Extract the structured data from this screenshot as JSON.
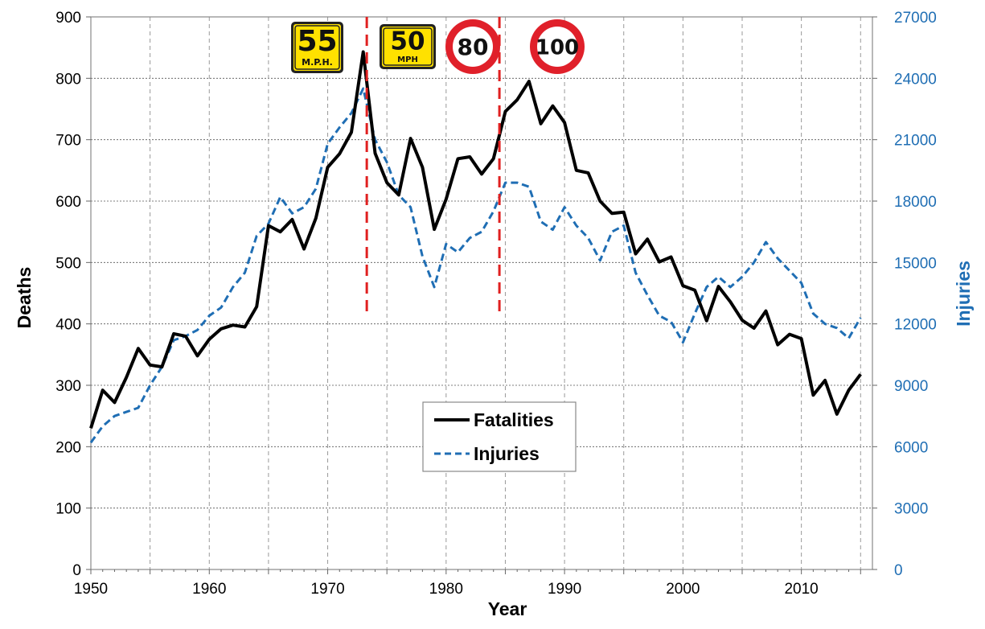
{
  "chart_data": {
    "type": "line",
    "xlabel": "Year",
    "ylabel": "Deaths",
    "y2label": "Injuries",
    "xlim": [
      1950,
      2016
    ],
    "ylim": [
      0,
      900
    ],
    "y2lim": [
      0,
      27000
    ],
    "x_ticks": [
      "1950",
      "1960",
      "1970",
      "1980",
      "1990",
      "2000",
      "2010"
    ],
    "y_ticks": [
      "0",
      "100",
      "200",
      "300",
      "400",
      "500",
      "600",
      "700",
      "800",
      "900"
    ],
    "y2_ticks": [
      "0",
      "3000",
      "6000",
      "9000",
      "12000",
      "15000",
      "18000",
      "21000",
      "24000",
      "27000"
    ],
    "grid": true,
    "legend_position": "center-bottom",
    "colors": {
      "fatalities": "#000000",
      "injuries": "#1f6eb4",
      "policy_line": "#e02020",
      "sign_yellow": "#ffe100",
      "sign_red": "#e0202a"
    },
    "series": [
      {
        "name": "Fatalities",
        "axis": "left",
        "style": "solid",
        "x": [
          1950,
          1951,
          1952,
          1953,
          1954,
          1955,
          1956,
          1957,
          1958,
          1959,
          1960,
          1961,
          1962,
          1963,
          1964,
          1965,
          1966,
          1967,
          1968,
          1969,
          1970,
          1971,
          1972,
          1973,
          1974,
          1975,
          1976,
          1977,
          1978,
          1979,
          1980,
          1981,
          1982,
          1983,
          1984,
          1985,
          1986,
          1987,
          1988,
          1989,
          1990,
          1991,
          1992,
          1993,
          1994,
          1995,
          1996,
          1997,
          1998,
          1999,
          2000,
          2001,
          2002,
          2003,
          2004,
          2005,
          2006,
          2007,
          2008,
          2009,
          2010,
          2011,
          2012,
          2013,
          2014,
          2015
        ],
        "values": [
          230,
          292,
          272,
          313,
          360,
          333,
          330,
          384,
          380,
          348,
          375,
          392,
          398,
          395,
          428,
          560,
          550,
          570,
          522,
          572,
          655,
          677,
          712,
          843,
          678,
          630,
          610,
          702,
          655,
          554,
          603,
          669,
          672,
          644,
          669,
          746,
          765,
          795,
          726,
          755,
          728,
          650,
          646,
          600,
          580,
          582,
          514,
          538,
          501,
          509,
          462,
          455,
          405,
          461,
          436,
          406,
          393,
          421,
          366,
          383,
          376,
          284,
          308,
          253,
          292,
          318
        ]
      },
      {
        "name": "Injuries",
        "axis": "right",
        "style": "dashed",
        "x": [
          1950,
          1951,
          1952,
          1953,
          1954,
          1955,
          1956,
          1957,
          1958,
          1959,
          1960,
          1961,
          1962,
          1963,
          1964,
          1965,
          1966,
          1967,
          1968,
          1969,
          1970,
          1971,
          1972,
          1973,
          1974,
          1975,
          1976,
          1977,
          1978,
          1979,
          1980,
          1981,
          1982,
          1983,
          1984,
          1985,
          1986,
          1987,
          1988,
          1989,
          1990,
          1991,
          1992,
          1993,
          1994,
          1995,
          1996,
          1997,
          1998,
          1999,
          2000,
          2001,
          2002,
          2003,
          2004,
          2005,
          2006,
          2007,
          2008,
          2009,
          2010,
          2011,
          2012,
          2013,
          2014,
          2015
        ],
        "values": [
          6200,
          7000,
          7500,
          7700,
          7900,
          9000,
          9900,
          11200,
          11400,
          11700,
          12400,
          12800,
          13800,
          14500,
          16300,
          16900,
          18200,
          17400,
          17700,
          18600,
          20800,
          21600,
          22300,
          23500,
          21000,
          19900,
          18300,
          17700,
          15300,
          13800,
          15900,
          15500,
          16200,
          16500,
          17500,
          18900,
          18900,
          18700,
          17000,
          16600,
          17700,
          16800,
          16200,
          15100,
          16500,
          16800,
          14500,
          13400,
          12400,
          12100,
          11100,
          12500,
          13800,
          14300,
          13800,
          14300,
          15000,
          16000,
          15200,
          14600,
          14000,
          12500,
          12000,
          11800,
          11300,
          12300
        ]
      }
    ],
    "annotations": [
      {
        "type": "vertical_line",
        "x": 1973.3,
        "style": "dashed",
        "color": "#e02020"
      },
      {
        "type": "vertical_line",
        "x": 1984.5,
        "style": "dashed",
        "color": "#e02020"
      },
      {
        "type": "sign",
        "shape": "yellow-square",
        "text": "55",
        "subtext": "M.P.H."
      },
      {
        "type": "sign",
        "shape": "yellow-square",
        "text": "50",
        "subtext": "MPH"
      },
      {
        "type": "sign",
        "shape": "red-circle",
        "text": "80"
      },
      {
        "type": "sign",
        "shape": "red-circle",
        "text": "100"
      }
    ]
  }
}
